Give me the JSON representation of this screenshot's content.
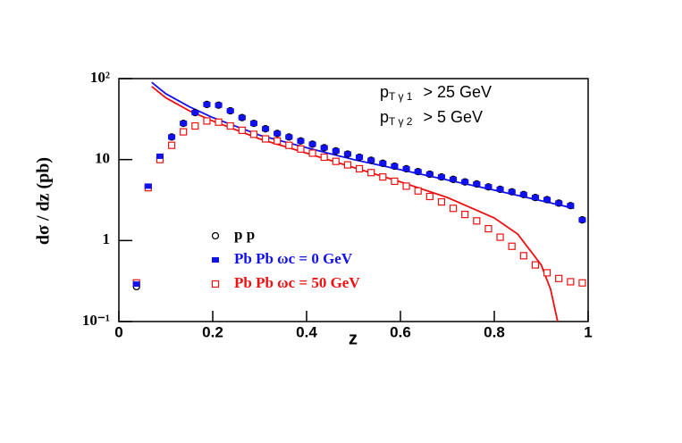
{
  "chart_data": {
    "type": "scatter",
    "xlabel": "z",
    "ylabel": "dσ / dz (pb)",
    "xlim": [
      0,
      1
    ],
    "ylim": [
      0.1,
      100
    ],
    "log_y": true,
    "xticks": [
      0,
      0.2,
      0.4,
      0.6,
      0.8,
      1
    ],
    "yticks": [
      {
        "value": 0.1,
        "label": "10⁻¹"
      },
      1,
      10,
      {
        "value": 100,
        "label": "10²"
      }
    ],
    "annotations": [
      {
        "main": "p",
        "sub": "T γ 1",
        "rest": "> 25 GeV"
      },
      {
        "main": "p",
        "sub": "T γ 2",
        "rest": ">   5 GeV"
      }
    ],
    "x": [
      0.0375,
      0.0625,
      0.0875,
      0.1125,
      0.1375,
      0.1625,
      0.1875,
      0.2125,
      0.2375,
      0.2625,
      0.2875,
      0.3125,
      0.3375,
      0.3625,
      0.3875,
      0.4125,
      0.4375,
      0.4625,
      0.4875,
      0.5125,
      0.5375,
      0.5625,
      0.5875,
      0.6125,
      0.6375,
      0.6625,
      0.6875,
      0.7125,
      0.7375,
      0.7625,
      0.7875,
      0.8125,
      0.8375,
      0.8625,
      0.8875,
      0.9125,
      0.9375,
      0.9625,
      0.9875
    ],
    "series": [
      {
        "name": "p p",
        "marker": "circle",
        "color": "#000000",
        "values": [
          0.27,
          4.5,
          10.5,
          19,
          28,
          38,
          48,
          47,
          40,
          33,
          28,
          24,
          21,
          19,
          17,
          15.5,
          14,
          12.8,
          11.7,
          10.7,
          9.8,
          9.0,
          8.3,
          7.7,
          7.1,
          6.6,
          6.1,
          5.7,
          5.3,
          5.0,
          4.6,
          4.3,
          4.0,
          3.7,
          3.4,
          3.2,
          2.9,
          2.7,
          1.8
        ]
      },
      {
        "name": "Pb Pb ωc = 50 GeV",
        "marker": "open-square",
        "color": "#ee1111",
        "values": [
          0.3,
          4.5,
          10,
          15,
          22,
          26,
          30,
          29,
          26,
          23,
          20.5,
          18,
          17,
          15,
          13.5,
          12,
          10.7,
          9.5,
          8.6,
          7.7,
          6.9,
          6.1,
          5.4,
          4.7,
          4.1,
          3.5,
          3.0,
          2.5,
          2.1,
          1.75,
          1.4,
          1.1,
          0.85,
          0.65,
          0.5,
          0.4,
          0.34,
          0.31,
          0.3
        ]
      },
      {
        "name": "Pb Pb ωc =   0 GeV",
        "marker": "filled-square",
        "color": "#1111ee",
        "values": [
          0.29,
          4.7,
          11,
          19,
          28,
          38,
          48,
          47,
          40,
          33,
          28,
          24,
          21,
          19,
          17,
          15.5,
          14,
          12.8,
          11.7,
          10.7,
          9.8,
          9.0,
          8.3,
          7.7,
          7.1,
          6.6,
          6.1,
          5.7,
          5.3,
          5.0,
          4.6,
          4.3,
          4.0,
          3.7,
          3.4,
          3.2,
          2.9,
          2.7,
          1.8
        ]
      }
    ],
    "curves": [
      {
        "color": "#1111ee",
        "x": [
          0.07,
          0.1,
          0.15,
          0.2,
          0.3,
          0.4,
          0.5,
          0.6,
          0.7,
          0.8,
          0.9,
          0.97
        ],
        "values": [
          90,
          65,
          45,
          33,
          20,
          14,
          10,
          7.5,
          5.6,
          4.2,
          3.1,
          2.5
        ]
      },
      {
        "color": "#ee1111",
        "x": [
          0.07,
          0.1,
          0.15,
          0.2,
          0.3,
          0.4,
          0.5,
          0.6,
          0.7,
          0.8,
          0.85,
          0.9,
          0.92,
          0.935
        ],
        "values": [
          80,
          58,
          40,
          30,
          18,
          12,
          8,
          5.3,
          3.4,
          1.9,
          1.2,
          0.5,
          0.25,
          0.1
        ]
      }
    ]
  }
}
